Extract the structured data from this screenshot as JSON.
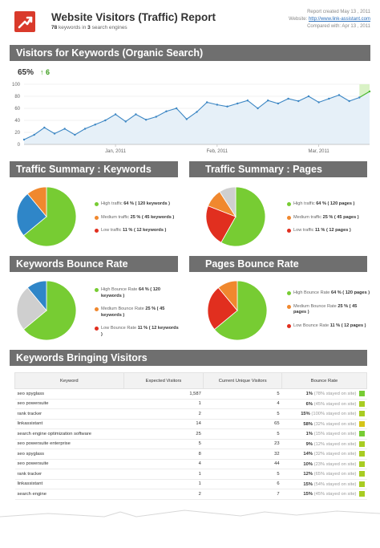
{
  "header": {
    "title": "Website Visitors (Traffic) Report",
    "subtitle_count": "78",
    "subtitle_mid": " keywords in ",
    "subtitle_engines": "3",
    "subtitle_end": " search engines",
    "report_created": "Report created May 13 , 2011",
    "website_label": "Website:",
    "website_url": "http://www.link-assistant.com",
    "compared": "Compared with: Apr 13 , 2011"
  },
  "sections": {
    "visitors": "Visitors for Keywords (Organic Search)",
    "traffic_keywords": "Traffic Summary : Keywords",
    "traffic_pages": "Traffic Summary : Pages",
    "bounce_keywords": "Keywords Bounce Rate",
    "bounce_pages": "Pages Bounce Rate",
    "bringing": "Keywords Bringing Visitors"
  },
  "summary": {
    "percent": "65%",
    "change": "6",
    "arrow_icon": "arrow-up-icon"
  },
  "colors": {
    "green": "#77cc33",
    "orange": "#f0882e",
    "blue": "#2f86c8",
    "red": "#e12f1f",
    "grey": "#cfcfcf"
  },
  "chart_data": [
    {
      "type": "area",
      "title": "",
      "x_ticks": [
        "Jan, 2011",
        "Feb, 2011",
        "Mar, 2011"
      ],
      "y_ticks": [
        0,
        20,
        40,
        60,
        80,
        100
      ],
      "ylim": [
        0,
        100
      ],
      "grid": true,
      "series": [
        {
          "values": [
            8,
            16,
            28,
            18,
            26,
            16,
            26,
            33,
            40,
            50,
            38,
            50,
            41,
            46,
            55,
            60,
            42,
            54,
            70,
            66,
            63,
            68,
            73,
            60,
            73,
            68,
            76,
            72,
            80,
            70,
            76,
            82,
            72,
            78,
            88
          ]
        }
      ]
    },
    {
      "type": "pie",
      "slices": [
        {
          "label": "High traffic",
          "value": 64
        },
        {
          "label": "Medium traffic",
          "value": 25
        },
        {
          "label": "Low traffic",
          "value": 11
        }
      ]
    },
    {
      "type": "pie",
      "slices": [
        {
          "label": "High traffic",
          "value": 64
        },
        {
          "label": "Medium traffic",
          "value": 25
        },
        {
          "label": "Low traffic",
          "value": 11
        }
      ]
    },
    {
      "type": "pie",
      "slices": [
        {
          "label": "High Bounce Rate",
          "value": 64
        },
        {
          "label": "Medium Bounce Rate",
          "value": 25
        },
        {
          "label": "Low Bounce Rate",
          "value": 11
        }
      ]
    },
    {
      "type": "pie",
      "slices": [
        {
          "label": "High Bounce Rate",
          "value": 64
        },
        {
          "label": "Medium Bounce Rate",
          "value": 25
        },
        {
          "label": "Low Bounce Rate",
          "value": 11
        }
      ]
    }
  ],
  "legends": {
    "traffic_keywords": [
      {
        "name": "High traffic",
        "value": "64 % ( 120 keywords )"
      },
      {
        "name": "Medium traffic",
        "value": "25 % ( 45 keywords )"
      },
      {
        "name": "Low traffic",
        "value": "11 % ( 12 keywords )"
      }
    ],
    "traffic_pages": [
      {
        "name": "High traffic",
        "value": "64 % ( 120 pages )"
      },
      {
        "name": "Medium traffic",
        "value": "25 % ( 45 pages )"
      },
      {
        "name": "Low traffic",
        "value": "11 % ( 12 pages )"
      }
    ],
    "bounce_keywords": [
      {
        "name": "High Bounce Rate",
        "value": "64 % ( 120 keywords )"
      },
      {
        "name": "Medium Bounce Rate",
        "value": "25 % ( 45 keywords )"
      },
      {
        "name": "Low Bounce Rate",
        "value": "11 % ( 12 keywords )"
      }
    ],
    "bounce_pages": [
      {
        "name": "High Bounce Rate",
        "value": "64 % ( 120 pages )"
      },
      {
        "name": "Medium Bounce Rate",
        "value": "25 % ( 45 pages )"
      },
      {
        "name": "Low Bounce Rate",
        "value": "11 % ( 12 pages )"
      }
    ]
  },
  "table": {
    "headers": [
      "Keyword",
      "Expected Visitors",
      "Current Unique Visitors",
      "Bounce Rate"
    ],
    "stayed": "stayed on site",
    "rows": [
      {
        "keyword": "seo spyglass",
        "expected": "1,587",
        "current": "5",
        "rate": "1%",
        "stay": "78%",
        "color": "#77cc33"
      },
      {
        "keyword": "seo powersuite",
        "expected": "1",
        "current": "4",
        "rate": "6%",
        "stay": "45%",
        "color": "#a8cc22"
      },
      {
        "keyword": "rank tracker",
        "expected": "2",
        "current": "5",
        "rate": "15%",
        "stay": "100%",
        "color": "#a8cc22"
      },
      {
        "keyword": "linkassistant",
        "expected": "14",
        "current": "65",
        "rate": "58%",
        "stay": "32%",
        "color": "#d4c418"
      },
      {
        "keyword": "search engine optimization software",
        "expected": "25",
        "current": "5",
        "rate": "1%",
        "stay": "15%",
        "color": "#77cc33"
      },
      {
        "keyword": "seo powersuite enterprise",
        "expected": "5",
        "current": "23",
        "rate": "9%",
        "stay": "12%",
        "color": "#a8cc22"
      },
      {
        "keyword": "seo spyglass",
        "expected": "8",
        "current": "32",
        "rate": "14%",
        "stay": "32%",
        "color": "#a8cc22"
      },
      {
        "keyword": "seo powersuite",
        "expected": "4",
        "current": "44",
        "rate": "10%",
        "stay": "23%",
        "color": "#a8cc22"
      },
      {
        "keyword": "rank tracker",
        "expected": "1",
        "current": "5",
        "rate": "12%",
        "stay": "65%",
        "color": "#a8cc22"
      },
      {
        "keyword": "linkassistant",
        "expected": "1",
        "current": "6",
        "rate": "15%",
        "stay": "54%",
        "color": "#a8cc22"
      },
      {
        "keyword": "search engine",
        "expected": "2",
        "current": "7",
        "rate": "15%",
        "stay": "45%",
        "color": "#a8cc22"
      }
    ]
  }
}
